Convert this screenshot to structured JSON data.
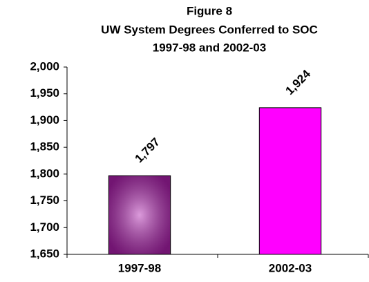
{
  "chart_data": {
    "type": "bar",
    "title": [
      "Figure 8",
      "UW System Degrees Conferred to SOC",
      "1997-98 and 2002-03"
    ],
    "categories": [
      "1997-98",
      "2002-03"
    ],
    "values": [
      1797,
      1924
    ],
    "value_labels": [
      "1,797",
      "1,924"
    ],
    "colors": [
      "#b020b0",
      "#ff00ff"
    ],
    "ylim": [
      1650,
      2000
    ],
    "yticks": [
      {
        "value": 1650,
        "label": "1,650"
      },
      {
        "value": 1700,
        "label": "1,700"
      },
      {
        "value": 1750,
        "label": "1,750"
      },
      {
        "value": 1800,
        "label": "1,800"
      },
      {
        "value": 1850,
        "label": "1,850"
      },
      {
        "value": 1900,
        "label": "1,900"
      },
      {
        "value": 1950,
        "label": "1,950"
      },
      {
        "value": 2000,
        "label": "2,000"
      }
    ],
    "grid": false
  }
}
